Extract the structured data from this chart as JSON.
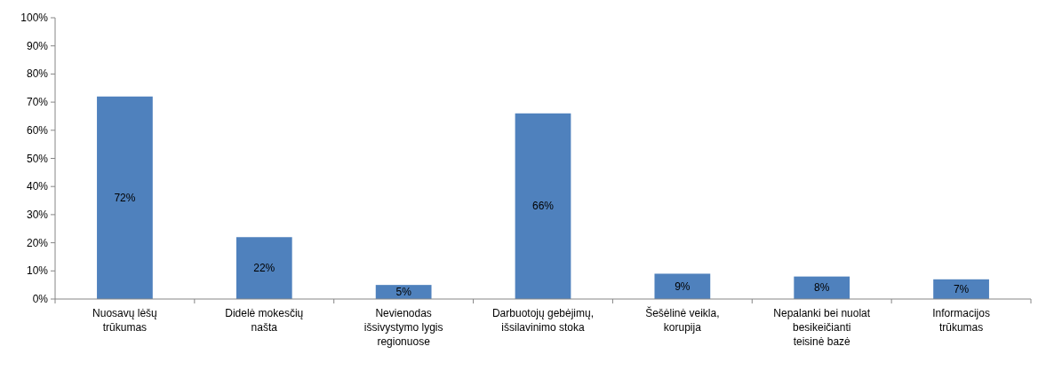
{
  "chart_data": {
    "type": "bar",
    "categories": [
      "Nuosavų lėšų trūkumas",
      "Didelė mokesčių našta",
      "Nevienodas išsivystymo lygis regionuose",
      "Darbuotojų gebėjimų, išsilavinimo stoka",
      "Šešėlinė veikla, korupija",
      "Nepalanki bei nuolat besikeičianti teisinė bazė",
      "Informacijos trūkumas"
    ],
    "values": [
      72,
      22,
      5,
      66,
      9,
      8,
      7
    ],
    "value_labels": [
      "72%",
      "22%",
      "5%",
      "66%",
      "9%",
      "8%",
      "7%"
    ],
    "color": "#4f81bd",
    "ylim": [
      0,
      100
    ],
    "yticks": [
      {
        "value": 0,
        "label": "0%"
      },
      {
        "value": 10,
        "label": "10%"
      },
      {
        "value": 20,
        "label": "20%"
      },
      {
        "value": 30,
        "label": "30%"
      },
      {
        "value": 40,
        "label": "40%"
      },
      {
        "value": 50,
        "label": "50%"
      },
      {
        "value": 60,
        "label": "60%"
      },
      {
        "value": 70,
        "label": "70%"
      },
      {
        "value": 80,
        "label": "80%"
      },
      {
        "value": 90,
        "label": "90%"
      },
      {
        "value": 100,
        "label": "100%"
      }
    ],
    "grid": false
  }
}
